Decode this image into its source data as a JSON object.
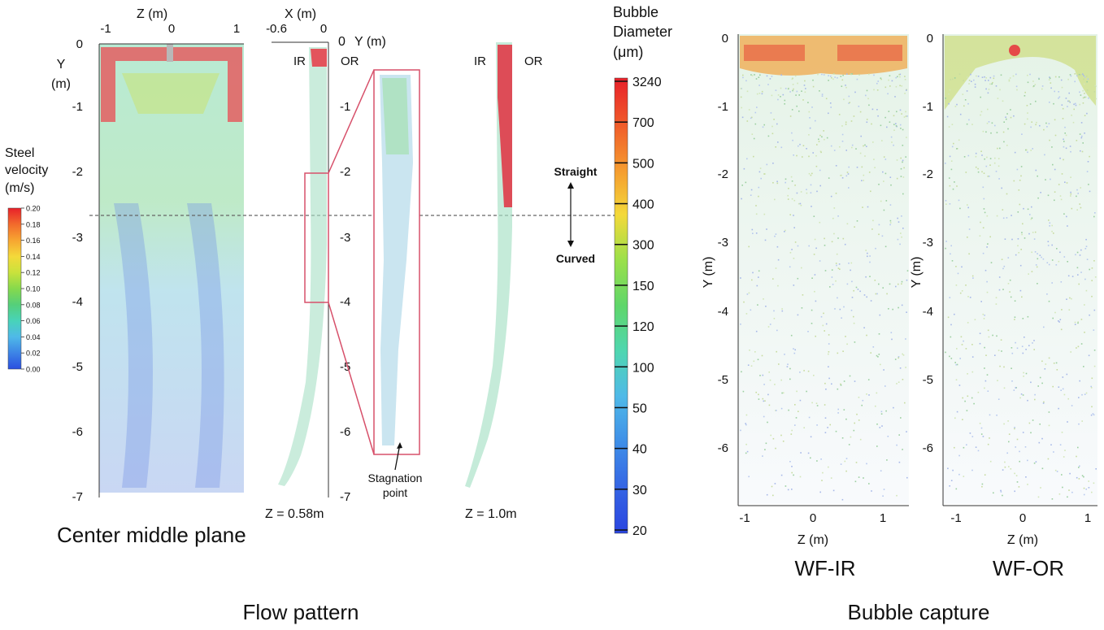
{
  "flow_pattern": {
    "caption": "Flow pattern",
    "center_plane": {
      "caption": "Center middle  plane",
      "x_axis_label": "Z (m)",
      "x_ticks": [
        "-1",
        "0",
        "1"
      ],
      "y_axis_label_line1": "Y",
      "y_axis_label_line2": "(m)",
      "y_ticks": [
        "0",
        "-1",
        "-2",
        "-3",
        "-4",
        "-5",
        "-6",
        "-7"
      ]
    },
    "velocity_legend": {
      "title_lines": [
        "Steel",
        "velocity",
        "(m/s)"
      ],
      "ticks": [
        "0.20",
        "0.18",
        "0.16",
        "0.14",
        "0.12",
        "0.10",
        "0.08",
        "0.06",
        "0.04",
        "0.02",
        "0.00"
      ],
      "colors": [
        "#e8202a",
        "#f26a2c",
        "#f7a531",
        "#f4d93a",
        "#c9e23c",
        "#86d94c",
        "#55cf7a",
        "#48d3b9",
        "#4fb9e8",
        "#3d84e6",
        "#2b4fe0"
      ]
    },
    "side_section_z058": {
      "x_axis_label": "X (m)",
      "x_ticks": [
        "-0.6",
        "0"
      ],
      "y_axis_label": "Y (m)",
      "y_ticks": [
        "0",
        "-1",
        "-2",
        "-3",
        "-4",
        "-5",
        "-6",
        "-7"
      ],
      "ir_label": "IR",
      "or_label": "OR",
      "z_label": "Z = 0.58m"
    },
    "zoom_annotation": "Stagnation\npoint",
    "zoom_annotation_lines": [
      "Stagnation",
      "point"
    ],
    "side_section_z10": {
      "ir_label": "IR",
      "or_label": "OR",
      "z_label": "Z = 1.0m"
    },
    "transition": {
      "top_label": "Straight",
      "bottom_label": "Curved"
    }
  },
  "bubble_legend": {
    "title_lines": [
      "Bubble",
      "Diameter",
      "(μm)"
    ],
    "ticks": [
      "3240",
      "700",
      "500",
      "400",
      "300",
      "150",
      "120",
      "100",
      "50",
      "40",
      "30",
      "20"
    ],
    "colors": [
      "#e8202a",
      "#f05a2a",
      "#f59a2f",
      "#f4d93a",
      "#9be04a",
      "#5fd66a",
      "#4fd6b0",
      "#4fb9e8",
      "#3f8fe8",
      "#3565e4",
      "#2a45e0"
    ]
  },
  "bubble_capture": {
    "caption": "Bubble capture",
    "panels": [
      {
        "caption": "WF-IR",
        "x_axis_label": "Z (m)",
        "y_axis_label": "Y (m)",
        "x_ticks": [
          "-1",
          "0",
          "1"
        ],
        "y_ticks": [
          "0",
          "-1",
          "-2",
          "-3",
          "-4",
          "-5",
          "-6"
        ]
      },
      {
        "caption": "WF-OR",
        "x_axis_label": "Z (m)",
        "y_axis_label": "Y (m)",
        "x_ticks": [
          "-1",
          "0",
          "1"
        ],
        "y_ticks": [
          "0",
          "-1",
          "-2",
          "-3",
          "-4",
          "-5",
          "-6"
        ]
      }
    ]
  }
}
